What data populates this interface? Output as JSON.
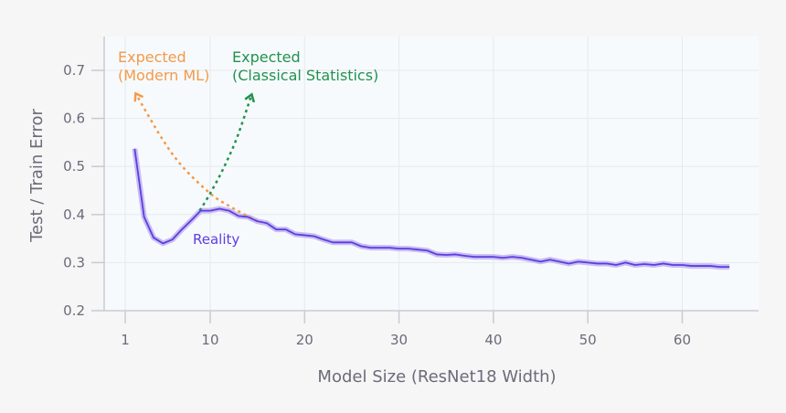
{
  "chart_data": {
    "type": "line",
    "title": "",
    "xlabel": "Model Size (ResNet18 Width)",
    "ylabel": "Test / Train Error",
    "xlim": [
      -0.7,
      68.5
    ],
    "ylim": [
      0.2,
      0.755
    ],
    "xticks": [
      1,
      10,
      20,
      30,
      40,
      50,
      60
    ],
    "yticks": [
      0.2,
      0.3,
      0.4,
      0.5,
      0.6,
      0.7
    ],
    "ytick_labels": [
      "0.2",
      "0.3",
      "0.4",
      "0.5",
      "0.6",
      "0.7"
    ],
    "grid": true,
    "colors": {
      "reality": "#5b3ee0",
      "band": "#c9bdf2",
      "modern": "#f39a4a",
      "classical": "#21924f",
      "grid": "#e6e9ee",
      "axis": "#c9cad6",
      "plot_bg": "#f7fafc"
    },
    "series": [
      {
        "name": "Reality",
        "style": "solid",
        "x": [
          2,
          3,
          4,
          5,
          6,
          7,
          8,
          9,
          10,
          11,
          12,
          13,
          14,
          15,
          16,
          17,
          18,
          19,
          20,
          21,
          22,
          23,
          24,
          25,
          26,
          27,
          28,
          29,
          30,
          31,
          32,
          33,
          34,
          35,
          36,
          37,
          38,
          39,
          40,
          41,
          42,
          43,
          44,
          45,
          46,
          47,
          48,
          49,
          50,
          51,
          52,
          53,
          54,
          55,
          56,
          57,
          58,
          59,
          60,
          61,
          62,
          63,
          64,
          65
        ],
        "y": [
          0.537,
          0.395,
          0.352,
          0.34,
          0.348,
          0.369,
          0.388,
          0.408,
          0.408,
          0.412,
          0.408,
          0.397,
          0.395,
          0.386,
          0.382,
          0.369,
          0.369,
          0.359,
          0.357,
          0.355,
          0.348,
          0.342,
          0.342,
          0.342,
          0.334,
          0.331,
          0.331,
          0.331,
          0.329,
          0.329,
          0.327,
          0.325,
          0.317,
          0.316,
          0.317,
          0.314,
          0.312,
          0.312,
          0.312,
          0.31,
          0.312,
          0.31,
          0.306,
          0.302,
          0.306,
          0.302,
          0.298,
          0.302,
          0.3,
          0.298,
          0.298,
          0.295,
          0.3,
          0.295,
          0.297,
          0.295,
          0.298,
          0.295,
          0.295,
          0.293,
          0.293,
          0.293,
          0.291,
          0.291
        ]
      },
      {
        "name": "Expected (Modern ML)",
        "style": "dotted-arrow",
        "x": [
          15,
          11.9,
          10,
          7.1,
          4.9,
          2.1
        ],
        "y": [
          0.386,
          0.419,
          0.444,
          0.499,
          0.558,
          0.652
        ]
      },
      {
        "name": "Expected (Classical Statistics)",
        "style": "dotted-arrow",
        "x": [
          8.9,
          10,
          11.3,
          12.8,
          14.4
        ],
        "y": [
          0.408,
          0.444,
          0.492,
          0.558,
          0.65
        ]
      }
    ],
    "annotations": {
      "modern_line1": "Expected",
      "modern_line2": "(Modern ML)",
      "classical_line1": "Expected",
      "classical_line2": "(Classical Statistics)",
      "reality": "Reality"
    }
  }
}
